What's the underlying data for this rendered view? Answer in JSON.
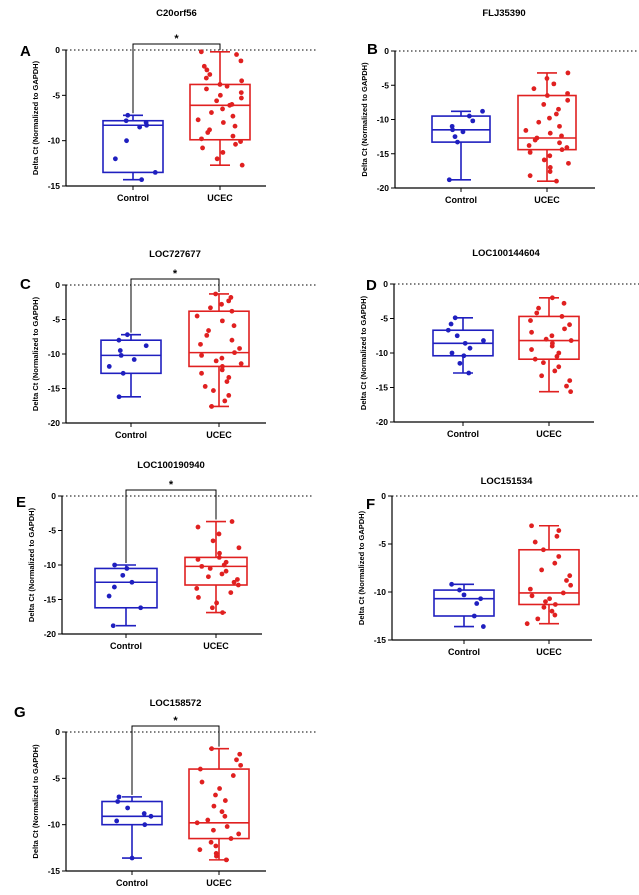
{
  "chart_data": [
    {
      "type": "box",
      "panel": "A",
      "title": "C20orf56",
      "ylabel": "Delta Ct (Normalized to GAPDH)",
      "ylim": [
        -15,
        0
      ],
      "yticks": [
        0,
        -5,
        -10,
        -15
      ],
      "categories": [
        "Control",
        "UCEC"
      ],
      "significance": "*",
      "reference_line": 0,
      "series": [
        {
          "name": "Control",
          "color": "#1f1fbf",
          "box": {
            "q1": -13.5,
            "median": -8.3,
            "q3": -7.8,
            "min": -14.3,
            "max": -7.2
          },
          "points": [
            -7.2,
            -7.8,
            -8.0,
            -8.3,
            -8.5,
            -10.0,
            -12.0,
            -13.5,
            -14.3
          ]
        },
        {
          "name": "UCEC",
          "color": "#e02020",
          "box": {
            "q1": -9.9,
            "median": -6.1,
            "q3": -3.8,
            "min": -12.7,
            "max": -0.2
          },
          "points": [
            -0.2,
            -0.5,
            -1.2,
            -1.8,
            -2.2,
            -2.7,
            -3.1,
            -3.4,
            -3.8,
            -4.0,
            -4.3,
            -4.7,
            -5.0,
            -5.3,
            -5.6,
            -6.0,
            -6.1,
            -6.5,
            -6.9,
            -7.3,
            -7.7,
            -8.0,
            -8.4,
            -8.8,
            -9.1,
            -9.5,
            -9.8,
            -10.1,
            -10.4,
            -10.8,
            -11.3,
            -12.0,
            -12.7
          ]
        }
      ]
    },
    {
      "type": "box",
      "panel": "B",
      "title": "FLJ35390",
      "ylabel": "Delta Ct (Normalized to GAPDH)",
      "ylim": [
        -20,
        0
      ],
      "yticks": [
        0,
        -5,
        -10,
        -15,
        -20
      ],
      "categories": [
        "Control",
        "UCEC"
      ],
      "significance": "",
      "reference_line": 0,
      "series": [
        {
          "name": "Control",
          "color": "#1f1fbf",
          "box": {
            "q1": -13.3,
            "median": -11.5,
            "q3": -9.5,
            "min": -18.8,
            "max": -8.8
          },
          "points": [
            -8.8,
            -9.5,
            -10.2,
            -11.0,
            -11.5,
            -11.8,
            -12.5,
            -13.3,
            -18.8
          ]
        },
        {
          "name": "UCEC",
          "color": "#e02020",
          "box": {
            "q1": -14.4,
            "median": -12.7,
            "q3": -6.5,
            "min": -19.0,
            "max": -3.2
          },
          "points": [
            -3.2,
            -4.0,
            -4.8,
            -5.5,
            -6.2,
            -6.5,
            -7.2,
            -7.8,
            -8.5,
            -9.2,
            -9.8,
            -10.4,
            -11.0,
            -11.6,
            -12.0,
            -12.4,
            -12.7,
            -13.0,
            -13.4,
            -13.8,
            -14.1,
            -14.4,
            -14.8,
            -15.3,
            -15.9,
            -16.4,
            -17.0,
            -17.6,
            -18.2,
            -19.0
          ]
        }
      ]
    },
    {
      "type": "box",
      "panel": "C",
      "title": "LOC727677",
      "ylabel": "Delta Ct (Normalized to GAPDH)",
      "ylim": [
        -20,
        0
      ],
      "yticks": [
        0,
        -5,
        -10,
        -15,
        -20
      ],
      "categories": [
        "Control",
        "UCEC"
      ],
      "significance": "*",
      "reference_line": 0,
      "series": [
        {
          "name": "Control",
          "color": "#1f1fbf",
          "box": {
            "q1": -12.8,
            "median": -10.2,
            "q3": -8.0,
            "min": -16.2,
            "max": -7.2
          },
          "points": [
            -7.2,
            -8.0,
            -8.8,
            -9.5,
            -10.2,
            -10.8,
            -11.8,
            -12.8,
            -16.2
          ]
        },
        {
          "name": "UCEC",
          "color": "#e02020",
          "box": {
            "q1": -11.8,
            "median": -9.8,
            "q3": -3.8,
            "min": -17.6,
            "max": -1.3
          },
          "points": [
            -1.3,
            -1.8,
            -2.3,
            -2.8,
            -3.3,
            -3.8,
            -4.5,
            -5.2,
            -5.9,
            -6.6,
            -7.3,
            -8.0,
            -8.6,
            -9.2,
            -9.8,
            -10.2,
            -10.6,
            -11.0,
            -11.4,
            -11.8,
            -12.3,
            -12.8,
            -13.4,
            -14.0,
            -14.7,
            -15.3,
            -16.0,
            -16.8,
            -17.6
          ]
        }
      ]
    },
    {
      "type": "box",
      "panel": "D",
      "title": "LOC100144604",
      "ylabel": "Delta Ct (Normalized to GAPDH)",
      "ylim": [
        -20,
        0
      ],
      "yticks": [
        0,
        -5,
        -10,
        -15,
        -20
      ],
      "categories": [
        "Control",
        "UCEC"
      ],
      "significance": "",
      "reference_line": 0,
      "series": [
        {
          "name": "Control",
          "color": "#1f1fbf",
          "box": {
            "q1": -10.4,
            "median": -8.6,
            "q3": -6.7,
            "min": -12.9,
            "max": -4.9
          },
          "points": [
            -4.9,
            -5.8,
            -6.7,
            -7.5,
            -8.2,
            -8.6,
            -9.3,
            -10.0,
            -10.4,
            -11.5,
            -12.9
          ]
        },
        {
          "name": "UCEC",
          "color": "#e02020",
          "box": {
            "q1": -10.9,
            "median": -8.2,
            "q3": -4.7,
            "min": -15.6,
            "max": -2.0
          },
          "points": [
            -2.0,
            -2.8,
            -3.5,
            -4.2,
            -4.7,
            -5.3,
            -5.9,
            -6.5,
            -7.0,
            -7.5,
            -8.0,
            -8.2,
            -8.6,
            -9.0,
            -9.5,
            -10.0,
            -10.5,
            -10.9,
            -11.4,
            -12.0,
            -12.6,
            -13.3,
            -14.0,
            -14.8,
            -15.6
          ]
        }
      ]
    },
    {
      "type": "box",
      "panel": "E",
      "title": "LOC100190940",
      "ylabel": "Delta Ct (Normalized to GAPDH)",
      "ylim": [
        -20,
        0
      ],
      "yticks": [
        0,
        -5,
        -10,
        -15,
        -20
      ],
      "categories": [
        "Control",
        "UCEC"
      ],
      "significance": "*",
      "reference_line": 0,
      "series": [
        {
          "name": "Control",
          "color": "#1f1fbf",
          "box": {
            "q1": -16.2,
            "median": -12.5,
            "q3": -10.5,
            "min": -18.8,
            "max": -10.0
          },
          "points": [
            -10.0,
            -10.5,
            -11.5,
            -12.5,
            -13.2,
            -14.5,
            -16.2,
            -18.8
          ]
        },
        {
          "name": "UCEC",
          "color": "#e02020",
          "box": {
            "q1": -12.9,
            "median": -10.2,
            "q3": -8.9,
            "min": -16.9,
            "max": -3.7
          },
          "points": [
            -3.7,
            -4.5,
            -5.5,
            -6.5,
            -7.5,
            -8.3,
            -8.9,
            -9.2,
            -9.6,
            -10.0,
            -10.2,
            -10.5,
            -10.9,
            -11.3,
            -11.7,
            -12.1,
            -12.5,
            -12.9,
            -13.4,
            -14.0,
            -14.7,
            -15.5,
            -16.2,
            -16.9
          ]
        }
      ]
    },
    {
      "type": "box",
      "panel": "F",
      "title": "LOC151534",
      "ylabel": "Delta Ct (Normalized to GAPDH)",
      "ylim": [
        -15,
        0
      ],
      "yticks": [
        0,
        -5,
        -10,
        -15
      ],
      "categories": [
        "Control",
        "UCEC"
      ],
      "significance": "",
      "reference_line": 0,
      "series": [
        {
          "name": "Control",
          "color": "#1f1fbf",
          "box": {
            "q1": -12.5,
            "median": -10.7,
            "q3": -9.8,
            "min": -13.6,
            "max": -9.2
          },
          "points": [
            -9.2,
            -9.8,
            -10.3,
            -10.7,
            -11.2,
            -12.5,
            -13.6
          ]
        },
        {
          "name": "UCEC",
          "color": "#e02020",
          "box": {
            "q1": -11.3,
            "median": -10.1,
            "q3": -5.6,
            "min": -13.3,
            "max": -3.1
          },
          "points": [
            -3.1,
            -3.6,
            -4.2,
            -4.8,
            -5.6,
            -6.3,
            -7.0,
            -7.7,
            -8.3,
            -8.8,
            -9.3,
            -9.7,
            -10.1,
            -10.4,
            -10.7,
            -11.0,
            -11.3,
            -11.6,
            -12.0,
            -12.4,
            -12.8,
            -13.3
          ]
        }
      ]
    },
    {
      "type": "box",
      "panel": "G",
      "title": "LOC158572",
      "ylabel": "Delta Ct (Normalized to GAPDH)",
      "ylim": [
        -15,
        0
      ],
      "yticks": [
        0,
        -5,
        -10,
        -15
      ],
      "categories": [
        "Control",
        "UCEC"
      ],
      "significance": "*",
      "reference_line": 0,
      "series": [
        {
          "name": "Control",
          "color": "#1f1fbf",
          "box": {
            "q1": -10.0,
            "median": -9.1,
            "q3": -7.5,
            "min": -13.6,
            "max": -7.0
          },
          "points": [
            -7.0,
            -7.5,
            -8.2,
            -8.8,
            -9.1,
            -9.6,
            -10.0,
            -13.6
          ]
        },
        {
          "name": "UCEC",
          "color": "#e02020",
          "box": {
            "q1": -11.5,
            "median": -9.8,
            "q3": -4.0,
            "min": -13.8,
            "max": -1.8
          },
          "points": [
            -1.8,
            -2.4,
            -3.0,
            -3.6,
            -4.0,
            -4.7,
            -5.4,
            -6.1,
            -6.8,
            -7.4,
            -8.0,
            -8.6,
            -9.1,
            -9.5,
            -9.8,
            -10.2,
            -10.6,
            -11.0,
            -11.5,
            -11.9,
            -12.3,
            -12.7,
            -13.1,
            -13.4,
            -13.8
          ]
        }
      ]
    }
  ]
}
